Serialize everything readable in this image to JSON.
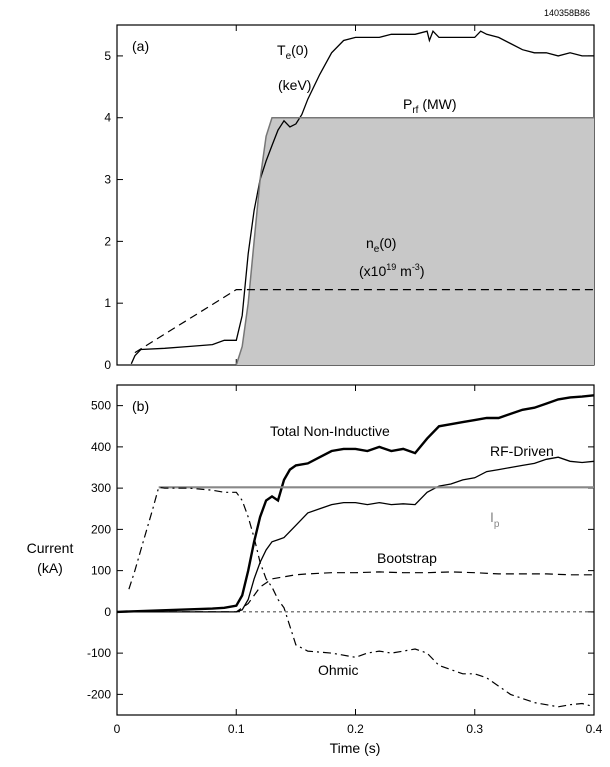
{
  "figure_id": "140358B86",
  "chart_data": [
    {
      "type": "line",
      "panel_label": "(a)",
      "xlim": [
        0,
        0.4
      ],
      "ylim": [
        0,
        5.5
      ],
      "yticks": [
        0,
        1,
        2,
        3,
        4,
        5
      ],
      "ytick_labels": [
        "0",
        "1",
        "2",
        "3",
        "4",
        "5"
      ],
      "grid": false,
      "series": [
        {
          "key": "te",
          "label_main": "T",
          "label_sub": "e",
          "label_tail": "(0)",
          "label_line2": "(keV)",
          "style": "solid",
          "x": [
            0.012,
            0.015,
            0.02,
            0.04,
            0.06,
            0.08,
            0.09,
            0.1,
            0.105,
            0.11,
            0.115,
            0.12,
            0.125,
            0.13,
            0.135,
            0.14,
            0.145,
            0.15,
            0.155,
            0.16,
            0.17,
            0.18,
            0.19,
            0.2,
            0.21,
            0.22,
            0.23,
            0.24,
            0.25,
            0.26,
            0.262,
            0.265,
            0.27,
            0.28,
            0.29,
            0.3,
            0.305,
            0.31,
            0.32,
            0.33,
            0.34,
            0.35,
            0.36,
            0.37,
            0.38,
            0.39,
            0.4
          ],
          "y": [
            0.02,
            0.15,
            0.25,
            0.27,
            0.3,
            0.33,
            0.4,
            0.4,
            0.8,
            1.8,
            2.5,
            3.0,
            3.3,
            3.55,
            3.8,
            3.95,
            3.85,
            3.9,
            4.05,
            4.3,
            4.7,
            5.05,
            5.25,
            5.3,
            5.3,
            5.3,
            5.35,
            5.35,
            5.35,
            5.4,
            5.25,
            5.4,
            5.3,
            5.3,
            5.3,
            5.3,
            5.4,
            5.35,
            5.3,
            5.2,
            5.1,
            5.05,
            5.05,
            5.0,
            5.05,
            5.0,
            5.0
          ]
        },
        {
          "key": "prf",
          "label_main": "P",
          "label_sub": "rf",
          "label_tail": " (MW)",
          "style": "filled",
          "color": "#c8c8c8",
          "x": [
            0.1,
            0.105,
            0.11,
            0.115,
            0.12,
            0.125,
            0.13,
            0.4
          ],
          "y": [
            0,
            0.3,
            1.0,
            2.0,
            3.0,
            3.7,
            4.0,
            4.0
          ]
        },
        {
          "key": "ne",
          "label_main": "n",
          "label_sub": "e",
          "label_tail": "(0)",
          "label_line2_main": "(x10",
          "label_line2_sup": "19",
          "label_line2_mid": " m",
          "label_line2_sup2": "-3",
          "label_line2_end": ")",
          "style": "dashed",
          "x": [
            0.015,
            0.1,
            0.4
          ],
          "y": [
            0.2,
            1.22,
            1.22
          ]
        }
      ]
    },
    {
      "type": "line",
      "panel_label": "(b)",
      "xlim": [
        0,
        0.4
      ],
      "ylim": [
        -250,
        550
      ],
      "yticks": [
        -200,
        -100,
        0,
        100,
        200,
        300,
        400,
        500
      ],
      "ytick_labels": [
        "-200",
        "-100",
        "0",
        "100",
        "200",
        "300",
        "400",
        "500"
      ],
      "xticks": [
        0,
        0.1,
        0.2,
        0.3,
        0.4
      ],
      "xtick_labels": [
        "0",
        "0.1",
        "0.2",
        "0.3",
        "0.4"
      ],
      "xlabel": "Time (s)",
      "ylabel_line1": "Current",
      "ylabel_line2": "(kA)",
      "grid": false,
      "series": [
        {
          "key": "total",
          "label": "Total Non-Inductive",
          "style": "thick",
          "x": [
            0.0,
            0.05,
            0.08,
            0.09,
            0.1,
            0.105,
            0.11,
            0.115,
            0.12,
            0.125,
            0.13,
            0.135,
            0.14,
            0.145,
            0.15,
            0.16,
            0.17,
            0.18,
            0.19,
            0.2,
            0.21,
            0.22,
            0.23,
            0.24,
            0.25,
            0.26,
            0.27,
            0.28,
            0.29,
            0.3,
            0.31,
            0.32,
            0.33,
            0.34,
            0.35,
            0.36,
            0.37,
            0.38,
            0.39,
            0.4
          ],
          "y": [
            0,
            5,
            8,
            10,
            15,
            40,
            100,
            170,
            230,
            270,
            280,
            270,
            320,
            345,
            355,
            360,
            375,
            390,
            395,
            395,
            390,
            400,
            390,
            395,
            385,
            420,
            450,
            455,
            460,
            465,
            470,
            470,
            480,
            490,
            495,
            505,
            515,
            520,
            522,
            525
          ]
        },
        {
          "key": "rf",
          "label": "RF-Driven",
          "style": "thin",
          "x": [
            0.0,
            0.1,
            0.105,
            0.11,
            0.115,
            0.12,
            0.125,
            0.13,
            0.135,
            0.14,
            0.15,
            0.16,
            0.17,
            0.18,
            0.19,
            0.2,
            0.21,
            0.22,
            0.23,
            0.24,
            0.25,
            0.26,
            0.27,
            0.28,
            0.29,
            0.3,
            0.31,
            0.32,
            0.33,
            0.34,
            0.35,
            0.36,
            0.37,
            0.38,
            0.39,
            0.4
          ],
          "y": [
            0,
            0,
            5,
            30,
            80,
            120,
            150,
            170,
            175,
            180,
            210,
            240,
            250,
            260,
            265,
            265,
            260,
            265,
            260,
            262,
            260,
            290,
            305,
            310,
            320,
            325,
            340,
            345,
            350,
            355,
            360,
            370,
            375,
            365,
            362,
            365
          ]
        },
        {
          "key": "ip",
          "label_main": "I",
          "label_sub": "p",
          "style": "gray",
          "color": "#888888",
          "x": [
            0.035,
            0.4
          ],
          "y": [
            302,
            302
          ]
        },
        {
          "key": "bootstrap",
          "label": "Bootstrap",
          "style": "dashed",
          "x": [
            0.0,
            0.1,
            0.11,
            0.12,
            0.13,
            0.14,
            0.15,
            0.16,
            0.18,
            0.2,
            0.22,
            0.24,
            0.26,
            0.28,
            0.3,
            0.32,
            0.34,
            0.36,
            0.38,
            0.4
          ],
          "y": [
            0,
            0,
            20,
            60,
            80,
            85,
            90,
            92,
            95,
            95,
            97,
            95,
            95,
            97,
            95,
            92,
            92,
            92,
            90,
            90
          ]
        },
        {
          "key": "ohmic",
          "label": "Ohmic",
          "style": "dashdot",
          "x": [
            0.01,
            0.015,
            0.02,
            0.03,
            0.035,
            0.04,
            0.06,
            0.08,
            0.09,
            0.1,
            0.105,
            0.11,
            0.115,
            0.12,
            0.125,
            0.13,
            0.135,
            0.14,
            0.15,
            0.16,
            0.18,
            0.2,
            0.21,
            0.22,
            0.23,
            0.24,
            0.25,
            0.26,
            0.27,
            0.28,
            0.29,
            0.3,
            0.31,
            0.32,
            0.33,
            0.34,
            0.35,
            0.36,
            0.37,
            0.38,
            0.39,
            0.4
          ],
          "y": [
            55,
            100,
            150,
            250,
            302,
            300,
            300,
            295,
            290,
            290,
            270,
            230,
            180,
            120,
            80,
            60,
            30,
            10,
            -80,
            -95,
            -100,
            -110,
            -100,
            -95,
            -100,
            -95,
            -90,
            -100,
            -130,
            -140,
            -150,
            -150,
            -160,
            -180,
            -200,
            -210,
            -220,
            -225,
            -230,
            -225,
            -222,
            -230
          ]
        },
        {
          "key": "zero",
          "style": "zero-dashed",
          "x": [
            0.0,
            0.4
          ],
          "y": [
            0,
            0
          ]
        }
      ]
    }
  ]
}
